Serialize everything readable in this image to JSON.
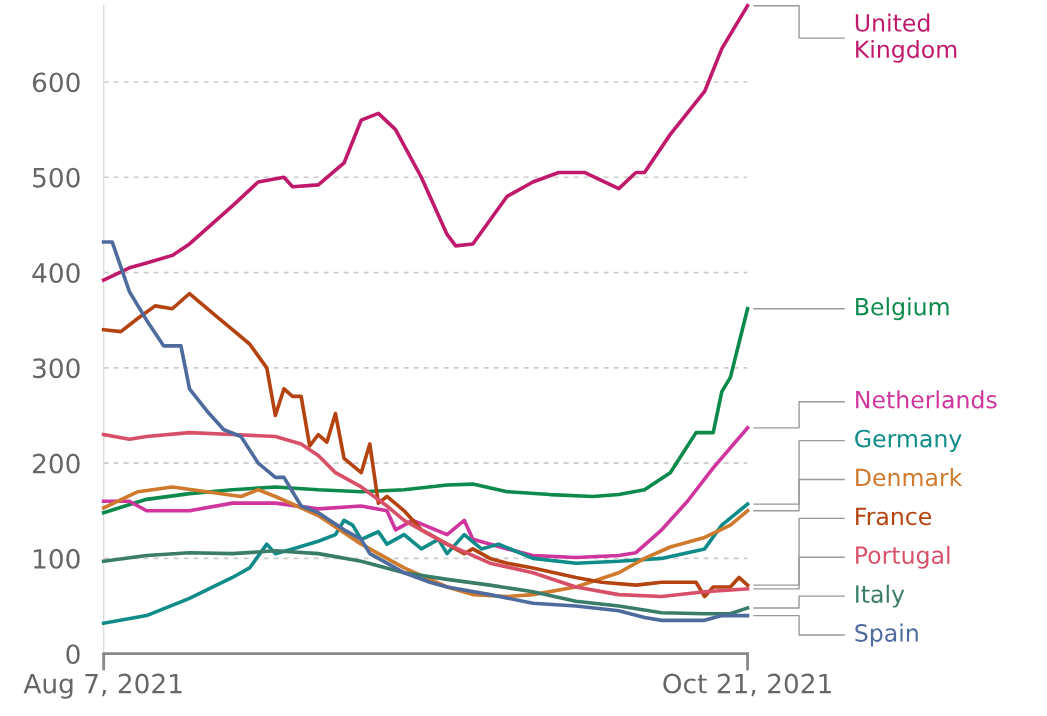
{
  "chart_data": {
    "type": "line",
    "xlim": [
      "2021-08-07",
      "2021-10-21"
    ],
    "xticks": [
      {
        "value": "2021-08-07",
        "label": "Aug 7, 2021"
      },
      {
        "value": "2021-10-21",
        "label": "Oct 21, 2021"
      }
    ],
    "ylim": [
      0,
      680
    ],
    "yticks": [
      0,
      100,
      200,
      300,
      400,
      500,
      600
    ],
    "grid": "y",
    "legend": false,
    "marker": "none",
    "line_style": "solid",
    "series": [
      {
        "name": "United\nKingdom",
        "color": "#c0196b",
        "x": [
          "2021-08-07",
          "2021-08-10",
          "2021-08-12",
          "2021-08-15",
          "2021-08-17",
          "2021-08-22",
          "2021-08-25",
          "2021-08-28",
          "2021-08-29",
          "2021-09-01",
          "2021-09-04",
          "2021-09-06",
          "2021-09-08",
          "2021-09-10",
          "2021-09-13",
          "2021-09-16",
          "2021-09-17",
          "2021-09-19",
          "2021-09-23",
          "2021-09-26",
          "2021-09-29",
          "2021-10-02",
          "2021-10-06",
          "2021-10-08",
          "2021-10-09",
          "2021-10-12",
          "2021-10-16",
          "2021-10-18",
          "2021-10-21"
        ],
        "values": [
          392,
          405,
          410,
          418,
          430,
          470,
          495,
          500,
          490,
          492,
          515,
          560,
          567,
          550,
          500,
          440,
          428,
          430,
          480,
          495,
          505,
          505,
          488,
          505,
          505,
          545,
          590,
          635,
          680
        ]
      },
      {
        "name": "Belgium",
        "color": "#0b8a4b",
        "x": [
          "2021-08-07",
          "2021-08-12",
          "2021-08-17",
          "2021-08-22",
          "2021-08-27",
          "2021-09-01",
          "2021-09-06",
          "2021-09-11",
          "2021-09-16",
          "2021-09-19",
          "2021-09-23",
          "2021-09-28",
          "2021-10-03",
          "2021-10-06",
          "2021-10-09",
          "2021-10-12",
          "2021-10-15",
          "2021-10-17",
          "2021-10-18",
          "2021-10-19",
          "2021-10-21"
        ],
        "values": [
          148,
          162,
          168,
          172,
          175,
          172,
          170,
          172,
          177,
          178,
          170,
          167,
          165,
          167,
          172,
          190,
          232,
          232,
          275,
          290,
          362
        ]
      },
      {
        "name": "Netherlands",
        "color": "#cf359d",
        "x": [
          "2021-08-07",
          "2021-08-10",
          "2021-08-12",
          "2021-08-17",
          "2021-08-22",
          "2021-08-27",
          "2021-09-01",
          "2021-09-06",
          "2021-09-09",
          "2021-09-10",
          "2021-09-12",
          "2021-09-16",
          "2021-09-18",
          "2021-09-19",
          "2021-09-23",
          "2021-09-26",
          "2021-10-01",
          "2021-10-06",
          "2021-10-08",
          "2021-10-11",
          "2021-10-14",
          "2021-10-17",
          "2021-10-21"
        ],
        "values": [
          160,
          160,
          150,
          150,
          158,
          158,
          152,
          155,
          150,
          130,
          140,
          125,
          140,
          120,
          110,
          103,
          101,
          103,
          106,
          130,
          160,
          195,
          237
        ]
      },
      {
        "name": "Germany",
        "color": "#0f8c8a",
        "x": [
          "2021-08-07",
          "2021-08-12",
          "2021-08-17",
          "2021-08-22",
          "2021-08-24",
          "2021-08-26",
          "2021-08-27",
          "2021-08-29",
          "2021-09-01",
          "2021-09-03",
          "2021-09-04",
          "2021-09-05",
          "2021-09-06",
          "2021-09-08",
          "2021-09-09",
          "2021-09-11",
          "2021-09-13",
          "2021-09-15",
          "2021-09-16",
          "2021-09-18",
          "2021-09-20",
          "2021-09-22",
          "2021-09-26",
          "2021-10-01",
          "2021-10-06",
          "2021-10-11",
          "2021-10-16",
          "2021-10-18",
          "2021-10-21"
        ],
        "values": [
          32,
          40,
          58,
          80,
          90,
          115,
          105,
          110,
          118,
          125,
          140,
          135,
          120,
          128,
          115,
          125,
          110,
          120,
          105,
          125,
          110,
          115,
          100,
          95,
          97,
          100,
          110,
          135,
          157
        ]
      },
      {
        "name": "Denmark",
        "color": "#cf7a2c",
        "x": [
          "2021-08-07",
          "2021-08-11",
          "2021-08-15",
          "2021-08-19",
          "2021-08-23",
          "2021-08-25",
          "2021-08-27",
          "2021-09-01",
          "2021-09-06",
          "2021-09-11",
          "2021-09-16",
          "2021-09-19",
          "2021-09-23",
          "2021-09-26",
          "2021-10-01",
          "2021-10-06",
          "2021-10-09",
          "2021-10-12",
          "2021-10-16",
          "2021-10-19",
          "2021-10-21"
        ],
        "values": [
          153,
          170,
          175,
          170,
          165,
          172,
          165,
          145,
          115,
          90,
          70,
          62,
          60,
          62,
          70,
          85,
          100,
          112,
          122,
          135,
          150
        ]
      },
      {
        "name": "France",
        "color": "#b4430f",
        "x": [
          "2021-08-07",
          "2021-08-09",
          "2021-08-11",
          "2021-08-13",
          "2021-08-15",
          "2021-08-17",
          "2021-08-20",
          "2021-08-22",
          "2021-08-24",
          "2021-08-26",
          "2021-08-27",
          "2021-08-28",
          "2021-08-29",
          "2021-08-30",
          "2021-08-31",
          "2021-09-01",
          "2021-09-02",
          "2021-09-03",
          "2021-09-04",
          "2021-09-06",
          "2021-09-07",
          "2021-09-08",
          "2021-09-09",
          "2021-09-11",
          "2021-09-13",
          "2021-09-16",
          "2021-09-18",
          "2021-09-19",
          "2021-09-21",
          "2021-09-23",
          "2021-09-26",
          "2021-10-01",
          "2021-10-04",
          "2021-10-08",
          "2021-10-11",
          "2021-10-15",
          "2021-10-16",
          "2021-10-17",
          "2021-10-19",
          "2021-10-20",
          "2021-10-21"
        ],
        "values": [
          340,
          338,
          352,
          365,
          362,
          378,
          355,
          340,
          325,
          300,
          250,
          278,
          270,
          270,
          218,
          230,
          222,
          252,
          205,
          190,
          220,
          158,
          165,
          150,
          130,
          115,
          105,
          110,
          100,
          95,
          90,
          80,
          75,
          72,
          75,
          75,
          60,
          70,
          70,
          80,
          72
        ]
      },
      {
        "name": "Portugal",
        "color": "#d84f68",
        "x": [
          "2021-08-07",
          "2021-08-10",
          "2021-08-12",
          "2021-08-17",
          "2021-08-22",
          "2021-08-27",
          "2021-08-30",
          "2021-09-01",
          "2021-09-03",
          "2021-09-06",
          "2021-09-09",
          "2021-09-11",
          "2021-09-16",
          "2021-09-21",
          "2021-09-26",
          "2021-10-01",
          "2021-10-06",
          "2021-10-11",
          "2021-10-16",
          "2021-10-21"
        ],
        "values": [
          230,
          225,
          228,
          232,
          230,
          228,
          220,
          208,
          190,
          175,
          155,
          140,
          115,
          95,
          85,
          70,
          62,
          60,
          65,
          68
        ]
      },
      {
        "name": "Italy",
        "color": "#3a7c6a",
        "x": [
          "2021-08-07",
          "2021-08-12",
          "2021-08-17",
          "2021-08-22",
          "2021-08-27",
          "2021-09-01",
          "2021-09-06",
          "2021-09-11",
          "2021-09-16",
          "2021-09-21",
          "2021-09-26",
          "2021-10-01",
          "2021-10-06",
          "2021-10-11",
          "2021-10-16",
          "2021-10-19",
          "2021-10-21"
        ],
        "values": [
          97,
          103,
          106,
          105,
          108,
          105,
          97,
          85,
          78,
          72,
          65,
          55,
          50,
          43,
          42,
          42,
          48
        ]
      },
      {
        "name": "Spain",
        "color": "#4e6b9e",
        "x": [
          "2021-08-07",
          "2021-08-08",
          "2021-08-10",
          "2021-08-12",
          "2021-08-14",
          "2021-08-16",
          "2021-08-17",
          "2021-08-19",
          "2021-08-21",
          "2021-08-23",
          "2021-08-25",
          "2021-08-27",
          "2021-08-28",
          "2021-08-30",
          "2021-09-01",
          "2021-09-04",
          "2021-09-06",
          "2021-09-07",
          "2021-09-09",
          "2021-09-11",
          "2021-09-14",
          "2021-09-16",
          "2021-09-21",
          "2021-09-26",
          "2021-10-01",
          "2021-10-06",
          "2021-10-09",
          "2021-10-11",
          "2021-10-16",
          "2021-10-18",
          "2021-10-21"
        ],
        "values": [
          432,
          432,
          380,
          350,
          323,
          323,
          278,
          255,
          235,
          228,
          200,
          185,
          185,
          155,
          148,
          130,
          120,
          105,
          95,
          85,
          75,
          70,
          62,
          53,
          50,
          45,
          38,
          35,
          35,
          40,
          40
        ]
      }
    ]
  }
}
